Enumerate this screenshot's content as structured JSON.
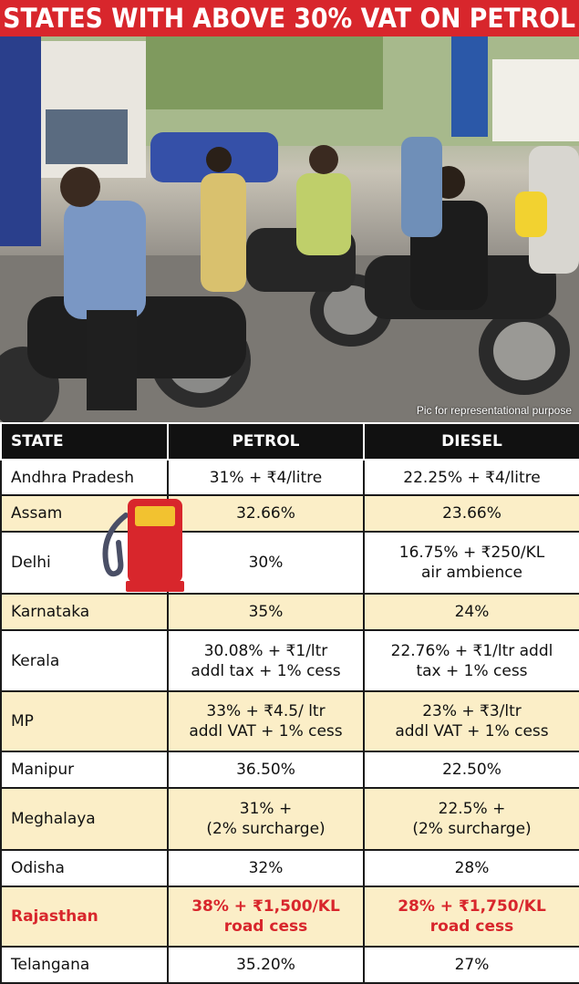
{
  "title": "STATES WITH ABOVE 30% VAT ON PETROL",
  "photo": {
    "caption": "Pic for representational purpose",
    "icon": "fuel-queue-photo"
  },
  "table": {
    "headers": [
      "STATE",
      "PETROL",
      "DIESEL"
    ],
    "rows": [
      {
        "state": "Andhra Pradesh",
        "petrol": [
          "31% + ₹4/litre"
        ],
        "diesel": [
          "22.25% + ₹4/litre"
        ]
      },
      {
        "state": "Assam",
        "petrol": [
          "32.66%"
        ],
        "diesel": [
          "23.66%"
        ]
      },
      {
        "state": "Delhi",
        "petrol": [
          "30%"
        ],
        "diesel": [
          "16.75% + ₹250/KL",
          "air ambience"
        ]
      },
      {
        "state": "Karnataka",
        "petrol": [
          "35%"
        ],
        "diesel": [
          "24%"
        ]
      },
      {
        "state": "Kerala",
        "petrol": [
          "30.08% + ₹1/ltr",
          "addl tax + 1% cess"
        ],
        "diesel": [
          "22.76% + ₹1/ltr addl",
          "tax + 1% cess"
        ]
      },
      {
        "state": "MP",
        "petrol": [
          "33% + ₹4.5/ ltr",
          "addl VAT + 1% cess"
        ],
        "diesel": [
          "23% + ₹3/ltr",
          "addl VAT + 1% cess"
        ]
      },
      {
        "state": "Manipur",
        "petrol": [
          "36.50%"
        ],
        "diesel": [
          "22.50%"
        ]
      },
      {
        "state": "Meghalaya",
        "petrol": [
          "31% +",
          "(2% surcharge)"
        ],
        "diesel": [
          "22.5% +",
          "(2% surcharge)"
        ]
      },
      {
        "state": "Odisha",
        "petrol": [
          "32%"
        ],
        "diesel": [
          "28%"
        ]
      },
      {
        "state": "Rajasthan",
        "petrol": [
          "38% + ₹1,500/KL",
          "road cess"
        ],
        "diesel": [
          "28% + ₹1,750/KL",
          "road cess"
        ]
      },
      {
        "state": "Telangana",
        "petrol": [
          "35.20%"
        ],
        "diesel": [
          "27%"
        ]
      }
    ]
  },
  "pump_icon": "fuel-pump-icon",
  "colors": {
    "accent_red": "#d8262c",
    "row_highlight": "#fbeec7",
    "header_black": "#111111"
  }
}
